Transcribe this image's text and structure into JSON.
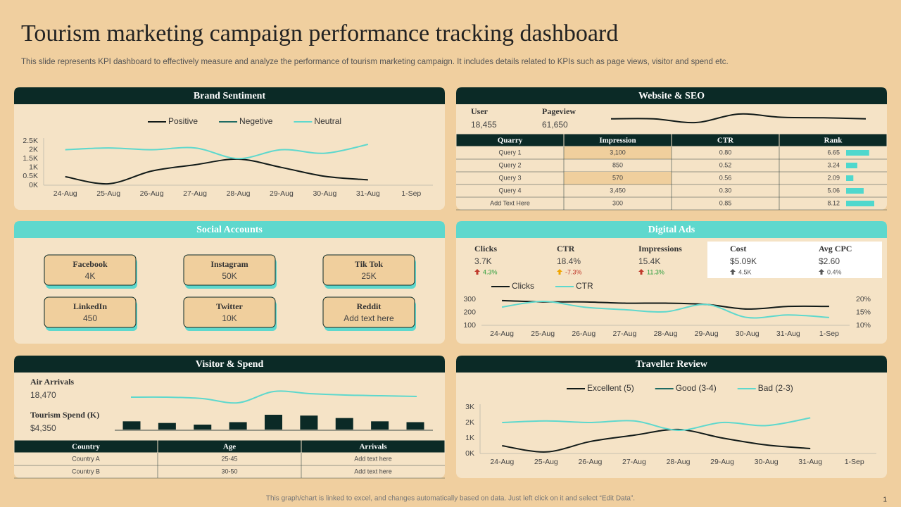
{
  "header": {
    "title": "Tourism marketing campaign performance tracking dashboard",
    "subtitle": "This slide represents KPI dashboard to effectively measure and analyze the performance of tourism marketing campaign. It includes details related to KPIs such as page views, visitor and spend etc."
  },
  "footer": {
    "note": "This graph/chart is linked to excel, and changes automatically based on data. Just left click on it and select “Edit Data”.",
    "page": "1"
  },
  "brand_sentiment": {
    "title": "Brand Sentiment"
  },
  "website_seo": {
    "title": "Website & SEO",
    "kpis": [
      {
        "label": "User",
        "value": "18,455"
      },
      {
        "label": "Pageview",
        "value": "61,650"
      }
    ],
    "table": {
      "columns": [
        "Quarry",
        "Impression",
        "CTR",
        "Rank"
      ],
      "rows": [
        [
          "Query 1",
          "3,100",
          "0.80",
          6.65
        ],
        [
          "Query 2",
          "850",
          "0.52",
          3.24
        ],
        [
          "Query 3",
          "570",
          "0.56",
          2.09
        ],
        [
          "Query 4",
          "3,450",
          "0.30",
          5.06
        ],
        [
          "Add Text Here",
          "300",
          "0.85",
          8.12
        ]
      ],
      "highlight_color": "#f0cf9d",
      "bar_color": "#4fd8cd"
    }
  },
  "social_accounts": {
    "title": "Social Accounts",
    "cards": [
      {
        "name": "Facebook",
        "value": "4K"
      },
      {
        "name": "Instagram",
        "value": "50K"
      },
      {
        "name": "Tik Tok",
        "value": "25K"
      },
      {
        "name": "LinkedIn",
        "value": "450"
      },
      {
        "name": "Twitter",
        "value": "10K"
      },
      {
        "name": "Reddit",
        "value": "Add text here"
      }
    ]
  },
  "digital_ads": {
    "title": "Digital Ads",
    "kpis": [
      {
        "label": "Clicks",
        "value": "3.7K",
        "change": "4.3%",
        "arrow_color": "#c0392b",
        "change_color": "#2a9d3a"
      },
      {
        "label": "CTR",
        "value": "18.4%",
        "change": "-7.3%",
        "arrow_color": "#f0a500",
        "change_color": "#c0392b"
      },
      {
        "label": "Impressions",
        "value": "15.4K",
        "change": "11.3%",
        "arrow_color": "#c0392b",
        "change_color": "#2a9d3a"
      },
      {
        "label": "Cost",
        "value": "$5.09K",
        "change": "4.5K",
        "arrow_color": "#555555",
        "change_color": "#555555"
      },
      {
        "label": "Avg CPC",
        "value": "$2.60",
        "change": "0.4%",
        "arrow_color": "#555555",
        "change_color": "#555555"
      }
    ]
  },
  "visitor_spend": {
    "title": "Visitor & Spend",
    "kpis": [
      {
        "label": "Air Arrivals",
        "value": "18,470"
      },
      {
        "label": "Tourism Spend (K)",
        "value": "$4,350"
      }
    ],
    "table": {
      "columns": [
        "Country",
        "Age",
        "Arrivals"
      ],
      "rows": [
        [
          "Country A",
          "25-45",
          "Add text here"
        ],
        [
          "Country B",
          "30-50",
          "Add text here"
        ]
      ]
    }
  },
  "traveller_review": {
    "title": "Traveller Review"
  },
  "chart_data": [
    {
      "type": "line",
      "categories": [
        "24-Aug",
        "25-Aug",
        "26-Aug",
        "27-Aug",
        "28-Aug",
        "29-Aug",
        "30-Aug",
        "31-Aug",
        "1-Sep"
      ],
      "series": [
        {
          "name": "Positive",
          "color": "#111a18",
          "values": [
            480,
            80,
            800,
            1150,
            1470,
            1000,
            500,
            300,
            null
          ]
        },
        {
          "name": "Negetive",
          "color": "#1f6b63",
          "values": [
            null,
            null,
            null,
            null,
            null,
            null,
            null,
            null,
            null
          ]
        },
        {
          "name": "Neutral",
          "color": "#5ed8cd",
          "values": [
            2000,
            2100,
            2000,
            2100,
            1500,
            2000,
            1800,
            2300,
            null
          ]
        }
      ],
      "ylim": [
        0,
        2500
      ],
      "yticks": [
        {
          "value": 0,
          "label": "0K"
        },
        {
          "value": 500,
          "label": "0.5K"
        },
        {
          "value": 1000,
          "label": "1K"
        },
        {
          "value": 1500,
          "label": "1.5K"
        },
        {
          "value": 2000,
          "label": "2K"
        },
        {
          "value": 2500,
          "label": "2.5K"
        }
      ]
    },
    {
      "type": "line",
      "series": [
        {
          "color": "#111a18",
          "values": [
            6.5,
            6.5,
            3,
            11,
            8,
            7.5,
            6.5
          ]
        }
      ]
    },
    {
      "type": "line",
      "categories": [
        "24-Aug",
        "25-Aug",
        "26-Aug",
        "27-Aug",
        "28-Aug",
        "29-Aug",
        "30-Aug",
        "31-Aug",
        "1-Sep"
      ],
      "series": [
        {
          "name": "Clicks",
          "color": "#111a18",
          "values": [
            290,
            280,
            280,
            270,
            270,
            260,
            225,
            245,
            245
          ]
        },
        {
          "name": "CTR",
          "color": "#5ed8cd",
          "axis": "y2",
          "values": [
            17,
            19.2,
            17,
            16,
            15.2,
            18,
            13,
            14,
            13
          ]
        }
      ],
      "ylim": [
        100,
        300
      ],
      "yticks": [
        100,
        200,
        300
      ],
      "y2lim": [
        10,
        20
      ],
      "y2ticks": [
        {
          "value": 10,
          "label": "10%"
        },
        {
          "value": 15,
          "label": "15%"
        },
        {
          "value": 20,
          "label": "20%"
        }
      ]
    },
    {
      "type": "line",
      "series": [
        {
          "color": "#5ed8cd",
          "values": [
            16,
            16,
            14,
            8,
            24,
            21,
            19,
            18,
            17
          ]
        }
      ]
    },
    {
      "type": "bar",
      "values": [
        10,
        8,
        6,
        9,
        18,
        17,
        14,
        10,
        9
      ],
      "color": "#0b2a26"
    },
    {
      "type": "line",
      "categories": [
        "24-Aug",
        "25-Aug",
        "26-Aug",
        "27-Aug",
        "28-Aug",
        "29-Aug",
        "30-Aug",
        "31-Aug",
        "1-Sep"
      ],
      "series": [
        {
          "name": "Excellent (5)",
          "color": "#111a18",
          "values": [
            500,
            100,
            770,
            1180,
            1550,
            1000,
            550,
            320,
            null
          ]
        },
        {
          "name": "Good (3-4)",
          "color": "#1f6b63",
          "values": [
            null,
            null,
            null,
            null,
            null,
            null,
            null,
            null,
            null
          ]
        },
        {
          "name": "Bad (2-3)",
          "color": "#5ed8cd",
          "values": [
            2000,
            2100,
            2000,
            2100,
            1500,
            2000,
            1800,
            2300,
            null
          ]
        }
      ],
      "ylim": [
        0,
        3000
      ],
      "yticks": [
        {
          "value": 0,
          "label": "0K"
        },
        {
          "value": 1000,
          "label": "1K"
        },
        {
          "value": 2000,
          "label": "2K"
        },
        {
          "value": 3000,
          "label": "3K"
        }
      ]
    }
  ]
}
